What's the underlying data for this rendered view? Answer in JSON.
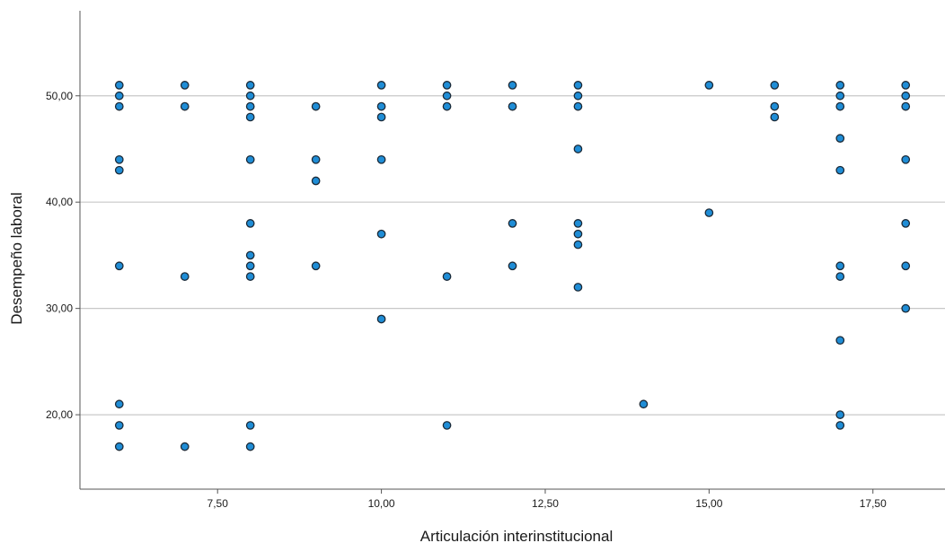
{
  "chart_data": {
    "type": "scatter",
    "xlabel": "Articulación interinstitucional",
    "ylabel": "Desempeño laboral",
    "xlim": [
      5.4,
      18.6
    ],
    "ylim": [
      13,
      58
    ],
    "x_ticks": [
      "7,50",
      "10,00",
      "12,50",
      "15,00",
      "17,50"
    ],
    "x_tick_values": [
      7.5,
      10,
      12.5,
      15,
      17.5
    ],
    "y_ticks": [
      "20,00",
      "30,00",
      "40,00",
      "50,00"
    ],
    "y_tick_values": [
      20,
      30,
      40,
      50
    ],
    "grid": "horizontal",
    "colors": {
      "marker_fill": "#1f8dd6",
      "marker_stroke": "#1b2a38",
      "grid": "#c8c8c8",
      "axis": "#555555"
    },
    "points": [
      [
        6,
        51
      ],
      [
        6,
        50
      ],
      [
        6,
        49
      ],
      [
        6,
        44
      ],
      [
        6,
        43
      ],
      [
        6,
        34
      ],
      [
        6,
        21
      ],
      [
        6,
        19
      ],
      [
        6,
        17
      ],
      [
        7,
        51
      ],
      [
        7,
        49
      ],
      [
        7,
        33
      ],
      [
        7,
        17
      ],
      [
        8,
        51
      ],
      [
        8,
        50
      ],
      [
        8,
        49
      ],
      [
        8,
        48
      ],
      [
        8,
        44
      ],
      [
        8,
        38
      ],
      [
        8,
        35
      ],
      [
        8,
        34
      ],
      [
        8,
        33
      ],
      [
        8,
        19
      ],
      [
        8,
        17
      ],
      [
        9,
        49
      ],
      [
        9,
        44
      ],
      [
        9,
        42
      ],
      [
        9,
        34
      ],
      [
        10,
        51
      ],
      [
        10,
        49
      ],
      [
        10,
        48
      ],
      [
        10,
        44
      ],
      [
        10,
        37
      ],
      [
        10,
        29
      ],
      [
        11,
        51
      ],
      [
        11,
        50
      ],
      [
        11,
        49
      ],
      [
        11,
        33
      ],
      [
        11,
        19
      ],
      [
        12,
        51
      ],
      [
        12,
        49
      ],
      [
        12,
        38
      ],
      [
        12,
        34
      ],
      [
        13,
        51
      ],
      [
        13,
        50
      ],
      [
        13,
        49
      ],
      [
        13,
        45
      ],
      [
        13,
        38
      ],
      [
        13,
        37
      ],
      [
        13,
        36
      ],
      [
        13,
        32
      ],
      [
        14,
        21
      ],
      [
        15,
        51
      ],
      [
        15,
        39
      ],
      [
        16,
        51
      ],
      [
        16,
        49
      ],
      [
        16,
        48
      ],
      [
        17,
        51
      ],
      [
        17,
        50
      ],
      [
        17,
        49
      ],
      [
        17,
        46
      ],
      [
        17,
        43
      ],
      [
        17,
        34
      ],
      [
        17,
        33
      ],
      [
        17,
        27
      ],
      [
        17,
        20
      ],
      [
        17,
        19
      ],
      [
        18,
        51
      ],
      [
        18,
        50
      ],
      [
        18,
        49
      ],
      [
        18,
        44
      ],
      [
        18,
        38
      ],
      [
        18,
        34
      ],
      [
        18,
        30
      ]
    ]
  }
}
